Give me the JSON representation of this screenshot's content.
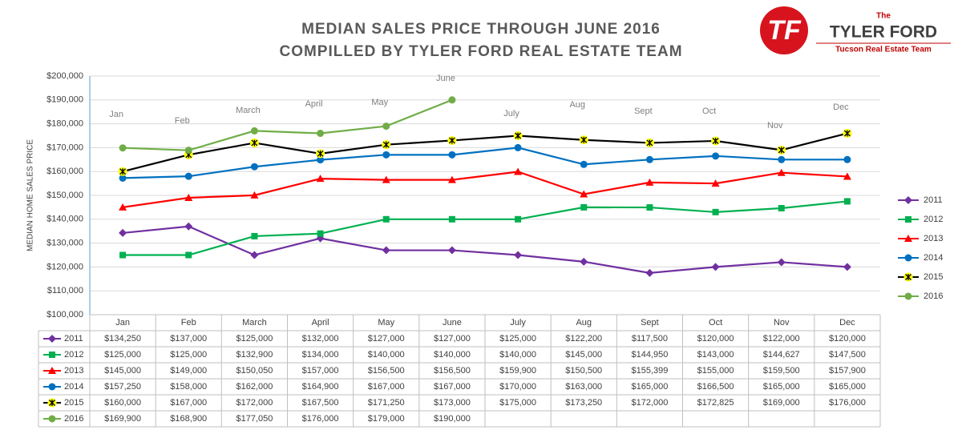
{
  "chart_data": {
    "type": "line",
    "title": "MEDIAN SALES PRICE THROUGH JUNE 2016",
    "subtitle": "COMPILLED BY TYLER FORD REAL ESTATE TEAM",
    "ylabel": "MEDIAN HOME SALES PRICE",
    "categories": [
      "Jan",
      "Feb",
      "March",
      "April",
      "May",
      "June",
      "July",
      "Aug",
      "Sept",
      "Oct",
      "Nov",
      "Dec"
    ],
    "ylim": [
      100000,
      200000
    ],
    "yticks": [
      {
        "value": 100000,
        "label": "$100,000"
      },
      {
        "value": 110000,
        "label": "$110,000"
      },
      {
        "value": 120000,
        "label": "$120,000"
      },
      {
        "value": 130000,
        "label": "$130,000"
      },
      {
        "value": 140000,
        "label": "$140,000"
      },
      {
        "value": 150000,
        "label": "$150,000"
      },
      {
        "value": 160000,
        "label": "$160,000"
      },
      {
        "value": 170000,
        "label": "$170,000"
      },
      {
        "value": 180000,
        "label": "$180,000"
      },
      {
        "value": 190000,
        "label": "$190,000"
      },
      {
        "value": 200000,
        "label": "$200,000"
      }
    ],
    "grid": true,
    "legend": "right",
    "series": [
      {
        "name": "2011",
        "color": "#7030a0",
        "marker": "diamond",
        "values": [
          134250,
          137000,
          125000,
          132000,
          127000,
          127000,
          125000,
          122200,
          117500,
          120000,
          122000,
          120000
        ],
        "value_labels": [
          "$134,250",
          "$137,000",
          "$125,000",
          "$132,000",
          "$127,000",
          "$127,000",
          "$125,000",
          "$122,200",
          "$117,500",
          "$120,000",
          "$122,000",
          "$120,000"
        ]
      },
      {
        "name": "2012",
        "color": "#00b050",
        "marker": "square",
        "values": [
          125000,
          125000,
          132900,
          134000,
          140000,
          140000,
          140000,
          145000,
          144950,
          143000,
          144627,
          147500
        ],
        "value_labels": [
          "$125,000",
          "$125,000",
          "$132,900",
          "$134,000",
          "$140,000",
          "$140,000",
          "$140,000",
          "$145,000",
          "$144,950",
          "$143,000",
          "$144,627",
          "$147,500"
        ]
      },
      {
        "name": "2013",
        "color": "#ff0000",
        "marker": "triangle",
        "values": [
          145000,
          149000,
          150050,
          157000,
          156500,
          156500,
          159900,
          150500,
          155399,
          155000,
          159500,
          157900
        ],
        "value_labels": [
          "$145,000",
          "$149,000",
          "$150,050",
          "$157,000",
          "$156,500",
          "$156,500",
          "$159,900",
          "$150,500",
          "$155,399",
          "$155,000",
          "$159,500",
          "$157,900"
        ]
      },
      {
        "name": "2014",
        "color": "#0070c0",
        "marker": "circle",
        "values": [
          157250,
          158000,
          162000,
          164900,
          167000,
          167000,
          170000,
          163000,
          165000,
          166500,
          165000,
          165000
        ],
        "value_labels": [
          "$157,250",
          "$158,000",
          "$162,000",
          "$164,900",
          "$167,000",
          "$167,000",
          "$170,000",
          "$163,000",
          "$165,000",
          "$166,500",
          "$165,000",
          "$165,000"
        ]
      },
      {
        "name": "2015",
        "color": "#000000",
        "marker": "star",
        "values": [
          160000,
          167000,
          172000,
          167500,
          171250,
          173000,
          175000,
          173250,
          172000,
          172825,
          169000,
          176000
        ],
        "value_labels": [
          "$160,000",
          "$167,000",
          "$172,000",
          "$167,500",
          "$171,250",
          "$173,000",
          "$175,000",
          "$173,250",
          "$172,000",
          "$172,825",
          "$169,000",
          "$176,000"
        ]
      },
      {
        "name": "2016",
        "color": "#70ad47",
        "marker": "circle",
        "values": [
          169900,
          168900,
          177050,
          176000,
          179000,
          190000,
          null,
          null,
          null,
          null,
          null,
          null
        ],
        "value_labels": [
          "$169,900",
          "$168,900",
          "$177,050",
          "$176,000",
          "$179,000",
          "$190,000",
          null,
          null,
          null,
          null,
          null,
          null
        ]
      }
    ]
  },
  "logo": {
    "mark": "TF",
    "the": "The",
    "name": "TYLER FORD",
    "tagline": "Tucson Real Estate Team"
  }
}
